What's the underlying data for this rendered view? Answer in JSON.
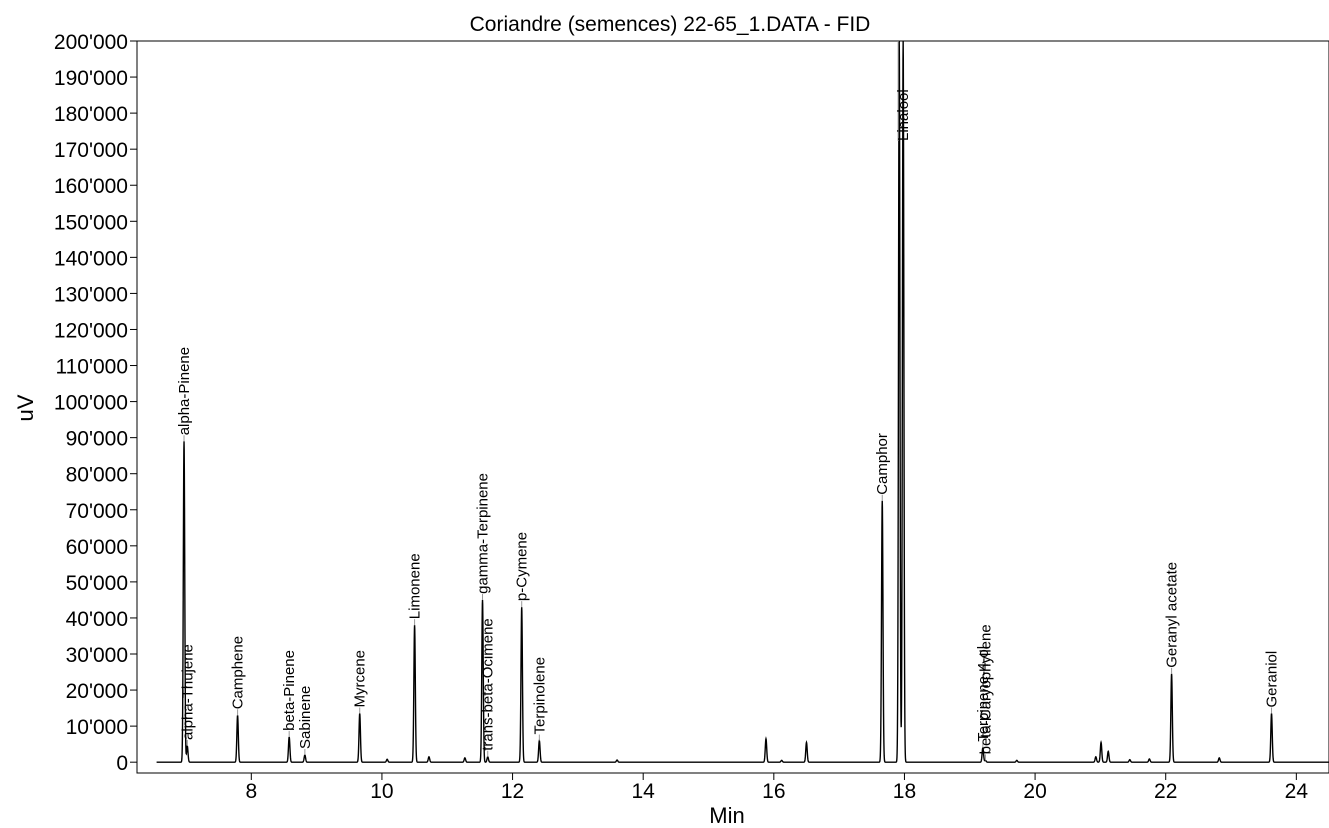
{
  "chart_data": {
    "type": "line",
    "title": "Coriandre (semences) 22-65_1.DATA - FID",
    "xlabel": "Min",
    "ylabel": "uV",
    "xlim": [
      6.25,
      24.5
    ],
    "ylim": [
      -3000,
      200000
    ],
    "x_ticks": [
      8,
      10,
      12,
      14,
      16,
      18,
      20,
      22,
      24
    ],
    "x_tick_labels": [
      "8",
      "10",
      "12",
      "14",
      "16",
      "18",
      "20",
      "22",
      "24"
    ],
    "y_ticks": [
      0,
      10000,
      20000,
      30000,
      40000,
      50000,
      60000,
      70000,
      80000,
      90000,
      100000,
      110000,
      120000,
      130000,
      140000,
      150000,
      160000,
      170000,
      180000,
      190000,
      200000
    ],
    "y_tick_labels": [
      "0",
      "10'000",
      "20'000",
      "30'000",
      "40'000",
      "50'000",
      "60'000",
      "70'000",
      "80'000",
      "90'000",
      "100'000",
      "110'000",
      "120'000",
      "130'000",
      "140'000",
      "150'000",
      "160'000",
      "170'000",
      "180'000",
      "190'000",
      "200'000"
    ],
    "grid": false,
    "line_color": "#000000",
    "annotated_peaks": [
      {
        "label": "alpha-Pinene",
        "rt": 6.97,
        "height": 89000
      },
      {
        "label": "alpha-Thujene",
        "rt": 7.02,
        "height": 4500
      },
      {
        "label": "Camphene",
        "rt": 7.79,
        "height": 13000
      },
      {
        "label": "beta-Pinene",
        "rt": 8.58,
        "height": 7000
      },
      {
        "label": "Sabinene",
        "rt": 8.82,
        "height": 2000
      },
      {
        "label": "Myrcene",
        "rt": 9.66,
        "height": 13500
      },
      {
        "label": "Limonene",
        "rt": 10.5,
        "height": 38000
      },
      {
        "label": "gamma-Terpinene",
        "rt": 11.54,
        "height": 45000
      },
      {
        "label": "trans-beta-Ocimene",
        "rt": 11.62,
        "height": 1500
      },
      {
        "label": "p-Cymene",
        "rt": 12.14,
        "height": 43000
      },
      {
        "label": "Terpinolene",
        "rt": 12.41,
        "height": 6000
      },
      {
        "label": "Camphor",
        "rt": 17.66,
        "height": 72500
      },
      {
        "label": "Linalool",
        "rt": 17.98,
        "height": 200000
      },
      {
        "label": "Terpinene-4-ol",
        "rt": 19.2,
        "height": 4000
      },
      {
        "label": "beta-Caryophyllene",
        "rt": 19.24,
        "height": 500
      },
      {
        "label": "Geranyl acetate",
        "rt": 22.09,
        "height": 24500
      },
      {
        "label": "Geraniol",
        "rt": 23.62,
        "height": 13500
      }
    ],
    "minor_peaks": [
      {
        "rt": 10.08,
        "height": 800
      },
      {
        "rt": 10.72,
        "height": 1500
      },
      {
        "rt": 11.27,
        "height": 1200
      },
      {
        "rt": 13.6,
        "height": 600
      },
      {
        "rt": 15.88,
        "height": 6500
      },
      {
        "rt": 16.5,
        "height": 5500
      },
      {
        "rt": 16.12,
        "height": 500
      },
      {
        "rt": 17.92,
        "height": 200000
      },
      {
        "rt": 19.72,
        "height": 500
      },
      {
        "rt": 20.93,
        "height": 1500
      },
      {
        "rt": 21.01,
        "height": 5500
      },
      {
        "rt": 21.12,
        "height": 3000
      },
      {
        "rt": 21.45,
        "height": 700
      },
      {
        "rt": 21.75,
        "height": 900
      },
      {
        "rt": 22.82,
        "height": 1200
      }
    ]
  }
}
